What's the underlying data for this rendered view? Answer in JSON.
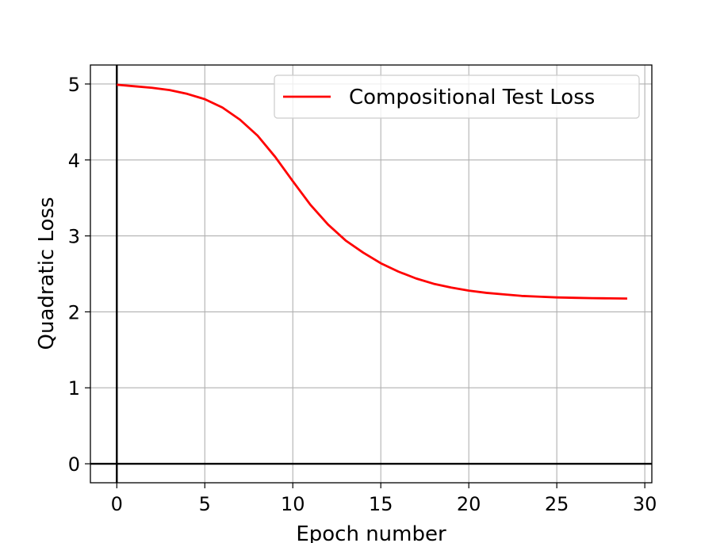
{
  "chart_data": {
    "type": "line",
    "title": "",
    "xlabel": "Epoch number",
    "ylabel": "Quadratic Loss",
    "xlim": [
      -1.5,
      30.4
    ],
    "ylim": [
      -0.25,
      5.25
    ],
    "xticks": [
      0,
      5,
      10,
      15,
      20,
      25,
      30
    ],
    "yticks": [
      0,
      1,
      2,
      3,
      4,
      5
    ],
    "grid": true,
    "legend_position": "top-right",
    "reference_lines": {
      "x": 0,
      "y": 0
    },
    "series": [
      {
        "name": "Compositional Test Loss",
        "color": "#ff0000",
        "x": [
          0,
          1,
          2,
          3,
          4,
          5,
          6,
          7,
          8,
          9,
          10,
          11,
          12,
          13,
          14,
          15,
          16,
          17,
          18,
          19,
          20,
          21,
          22,
          23,
          24,
          25,
          26,
          27,
          28,
          29
        ],
        "y": [
          4.99,
          4.97,
          4.95,
          4.92,
          4.87,
          4.8,
          4.69,
          4.53,
          4.32,
          4.04,
          3.72,
          3.41,
          3.15,
          2.94,
          2.78,
          2.64,
          2.53,
          2.44,
          2.37,
          2.32,
          2.28,
          2.25,
          2.23,
          2.21,
          2.2,
          2.19,
          2.185,
          2.18,
          2.178,
          2.175
        ]
      }
    ]
  }
}
